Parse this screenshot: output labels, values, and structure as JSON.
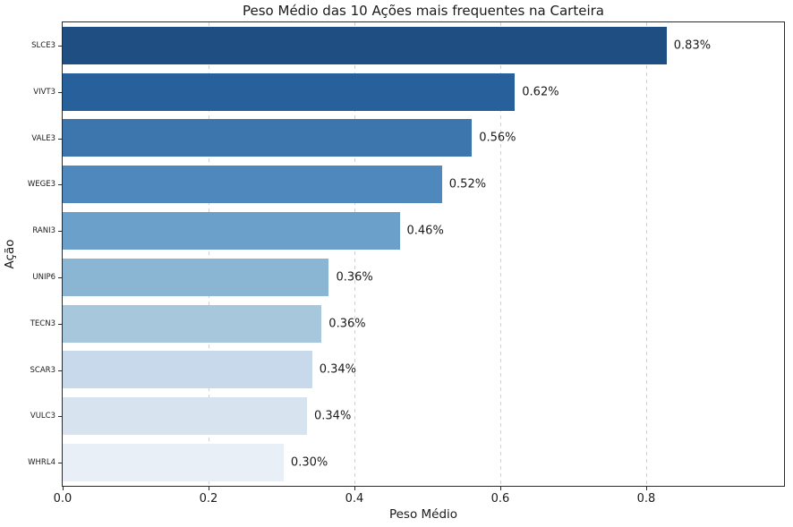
{
  "chart_data": {
    "type": "bar",
    "orientation": "horizontal",
    "title": "Peso Médio das 10 Ações mais frequentes na Carteira",
    "xlabel": "Peso Médio",
    "ylabel": "Ação",
    "categories": [
      "SLCE3",
      "VIVT3",
      "VALE3",
      "WEGE3",
      "RANI3",
      "UNIP6",
      "TECN3",
      "SCAR3",
      "VULC3",
      "WHRL4"
    ],
    "values": [
      0.828,
      0.62,
      0.561,
      0.52,
      0.462,
      0.365,
      0.355,
      0.342,
      0.335,
      0.303
    ],
    "bar_labels": [
      "0.83%",
      "0.62%",
      "0.56%",
      "0.52%",
      "0.46%",
      "0.36%",
      "0.36%",
      "0.34%",
      "0.34%",
      "0.30%"
    ],
    "xtick_labels": [
      "0.0",
      "0.2",
      "0.4",
      "0.6",
      "0.8"
    ],
    "xtick_values": [
      0.0,
      0.2,
      0.4,
      0.6,
      0.8
    ],
    "xlim": [
      0,
      0.989
    ],
    "bar_colors": [
      "#1e4e82",
      "#28609c",
      "#3d76ad",
      "#4e88bc",
      "#6ba0cb",
      "#8ab5d3",
      "#a7c7dd",
      "#c7d9ea",
      "#d8e3f0",
      "#e8eff7"
    ],
    "grid": {
      "axis": "x",
      "style": "dashed",
      "color": "#cfcfcf"
    },
    "style": {
      "spine_color": "#2b2b2b",
      "text_color": "#1a1a1a",
      "background": "#ffffff"
    }
  }
}
